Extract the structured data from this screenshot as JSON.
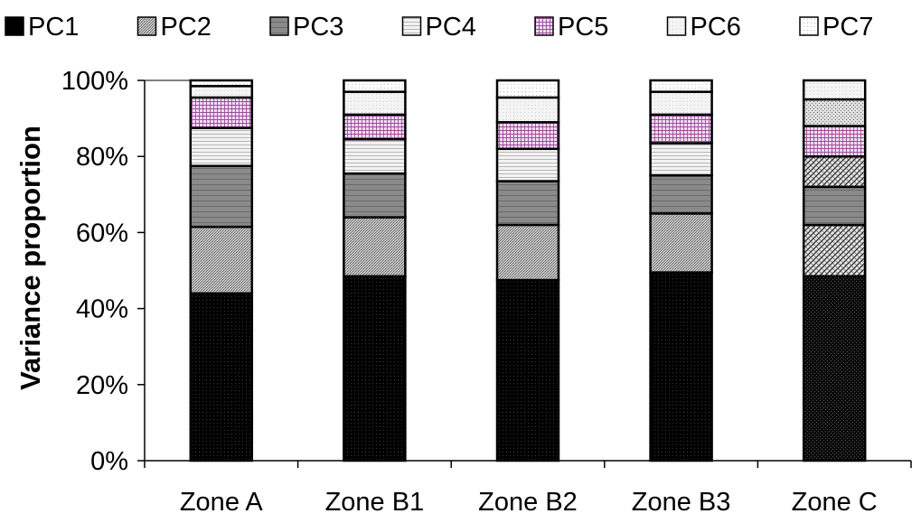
{
  "chart_data": {
    "type": "bar",
    "stacked": true,
    "percent_stacked": true,
    "ylabel": "Variance proportion",
    "xlabel": "",
    "ylim": [
      0,
      100
    ],
    "yticks": [
      "0%",
      "20%",
      "40%",
      "60%",
      "80%",
      "100%"
    ],
    "legend_position": "top",
    "categories": [
      "Zone A",
      "Zone B1",
      "Zone B2",
      "Zone B3",
      "Zone C"
    ],
    "series": [
      {
        "name": "PC1",
        "values": [
          44,
          48.5,
          47.5,
          49.5,
          48.5
        ]
      },
      {
        "name": "PC2",
        "values": [
          17.5,
          15.5,
          14.5,
          15.5,
          13.5
        ]
      },
      {
        "name": "PC3",
        "values": [
          16,
          11.5,
          11.5,
          10,
          10
        ]
      },
      {
        "name": "PC4",
        "values": [
          10,
          9,
          8.5,
          8.5,
          8
        ]
      },
      {
        "name": "PC5",
        "values": [
          8,
          6.5,
          7,
          7.5,
          8
        ]
      },
      {
        "name": "PC6",
        "values": [
          3,
          6,
          6.5,
          6,
          7
        ]
      },
      {
        "name": "PC7",
        "values": [
          1.5,
          3,
          4.5,
          3,
          5
        ]
      }
    ]
  }
}
